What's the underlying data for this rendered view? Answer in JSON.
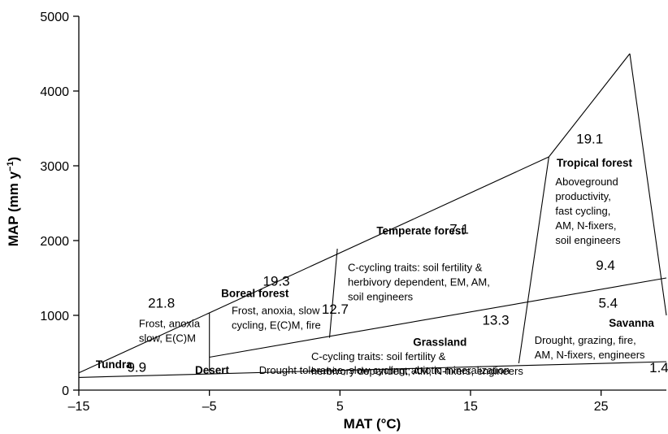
{
  "chart_data": {
    "type": "diagram",
    "xlabel": "MAT (°C)",
    "ylabel_main": "MAP (mm y",
    "ylabel_sup": "−1",
    "ylabel_close": ")",
    "xlim": [
      -15,
      30
    ],
    "ylim": [
      0,
      5000
    ],
    "xticks": [
      -15,
      -5,
      5,
      15,
      25
    ],
    "xtick_labels": [
      "–15",
      "–5",
      "5",
      "15",
      "25"
    ],
    "yticks": [
      0,
      1000,
      2000,
      3000,
      4000,
      5000
    ],
    "ytick_labels": [
      "0",
      "1000",
      "2000",
      "3000",
      "4000",
      "5000"
    ],
    "boundaries": [
      {
        "points": [
          [
            -15,
            230
          ],
          [
            21,
            3120
          ]
        ]
      },
      {
        "points": [
          [
            21,
            3120
          ],
          [
            27.2,
            4500
          ]
        ]
      },
      {
        "points": [
          [
            27.2,
            4500
          ],
          [
            30,
            1000
          ]
        ]
      },
      {
        "points": [
          [
            -15,
            170
          ],
          [
            30,
            380
          ]
        ]
      },
      {
        "points": [
          [
            -5,
            440
          ],
          [
            30,
            1500
          ]
        ]
      },
      {
        "points": [
          [
            -5,
            1030
          ],
          [
            -5,
            240
          ]
        ]
      },
      {
        "points": [
          [
            4.8,
            1890
          ],
          [
            4.2,
            700
          ]
        ]
      },
      {
        "points": [
          [
            21,
            3120
          ],
          [
            18.7,
            360
          ]
        ]
      }
    ],
    "biomes": [
      {
        "name": "Tundra",
        "at": [
          -13.7,
          295
        ],
        "lines": []
      },
      {
        "name": "Desert",
        "at": [
          -6.1,
          215
        ],
        "lines": [
          "Drought tolerance, slow cycling, abiotic mineralization"
        ],
        "desc_at": [
          -1.2,
          215
        ]
      },
      {
        "name": "Boreal forest",
        "at": [
          -4.1,
          1245
        ],
        "lines": [
          "Frost, anoxia, slow",
          "cycling, E(C)M, fire"
        ],
        "desc_at": [
          -3.3,
          1015
        ]
      },
      {
        "name": "Temperate forest",
        "at": [
          7.8,
          2080
        ],
        "lines": [
          "C-cycling traits: soil fertility &",
          "herbivory dependent, EM, AM,",
          "soil engineers"
        ],
        "desc_at": [
          5.6,
          1595
        ]
      },
      {
        "name": "Grassland",
        "at": [
          10.6,
          590
        ],
        "lines": [
          "C-cycling traits: soil fertility &",
          "herbivory dependent; AM, N-fixers, engineers"
        ],
        "desc_at": [
          2.8,
          400
        ]
      },
      {
        "name": "Tropical forest",
        "at": [
          21.6,
          2990
        ],
        "lines": [
          "Aboveground",
          "productivity,",
          "fast cycling,",
          "AM, N-fixers,",
          "soil engineers"
        ],
        "desc_at": [
          21.5,
          2740
        ]
      },
      {
        "name": "Savanna",
        "at": [
          25.6,
          850
        ],
        "lines": [
          "Drought, grazing, fire,",
          "AM, N-fixers, engineers"
        ],
        "desc_at": [
          19.9,
          620
        ]
      },
      {
        "name": "",
        "at": [
          0,
          0
        ],
        "lines": [
          "Frost, anoxia",
          "slow, E(C)M"
        ],
        "desc_at": [
          -10.4,
          840
        ]
      }
    ],
    "values": [
      {
        "label": "21.8",
        "at": [
          -9.7,
          1105
        ]
      },
      {
        "label": "9.9",
        "at": [
          -11.3,
          245
        ]
      },
      {
        "label": "19.3",
        "at": [
          -0.9,
          1395
        ]
      },
      {
        "label": "12.7",
        "at": [
          3.6,
          1020
        ]
      },
      {
        "label": "7.1",
        "at": [
          13.4,
          2090
        ]
      },
      {
        "label": "13.3",
        "at": [
          15.9,
          875
        ]
      },
      {
        "label": "19.1",
        "at": [
          23.1,
          3300
        ]
      },
      {
        "label": "9.4",
        "at": [
          24.6,
          1610
        ]
      },
      {
        "label": "5.4",
        "at": [
          24.8,
          1105
        ]
      },
      {
        "label": "1.4",
        "at": [
          28.7,
          240
        ]
      }
    ]
  }
}
